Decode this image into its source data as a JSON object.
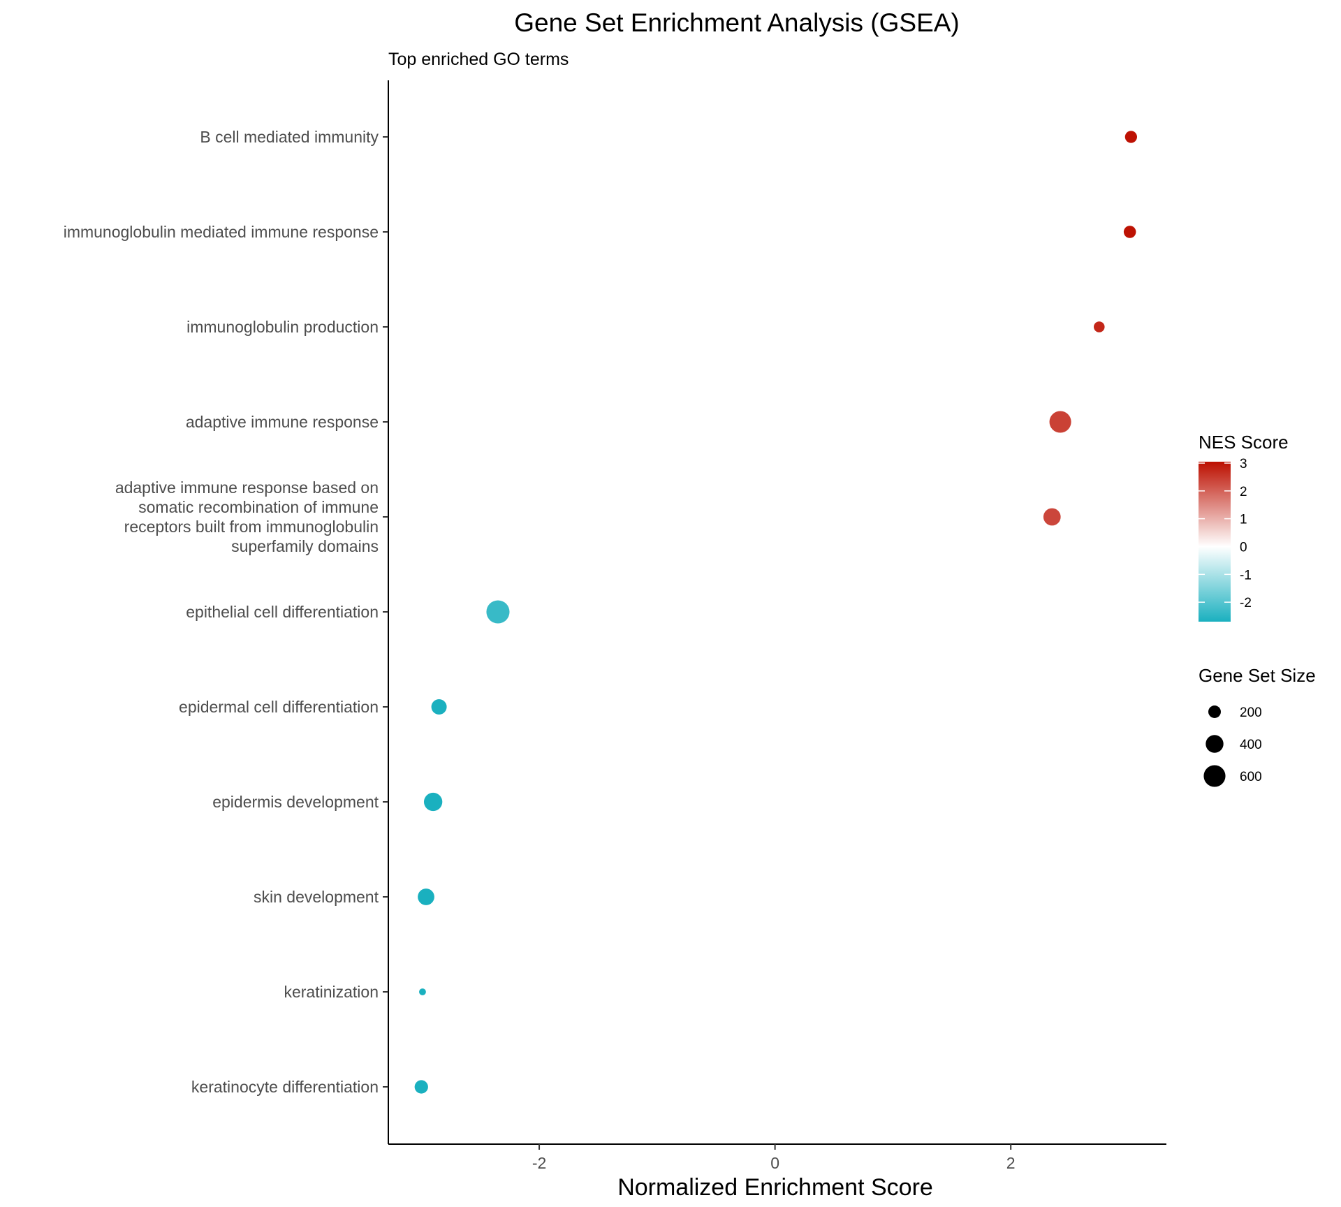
{
  "chart_data": {
    "type": "scatter",
    "title": "Gene Set Enrichment Analysis (GSEA)",
    "subtitle": "Top enriched GO terms",
    "xlabel": "Normalized Enrichment Score",
    "ylabel": "",
    "xlim": [
      -3.28,
      3.32
    ],
    "x_ticks": [
      -2,
      0,
      2
    ],
    "x_tick_labels": [
      "-2",
      "0",
      "2"
    ],
    "grid": false,
    "categories": [
      "B cell mediated immunity",
      "immunoglobulin mediated immune response",
      "immunoglobulin production",
      "adaptive immune response",
      "adaptive immune response based on\nsomatic recombination of immune\nreceptors built from immunoglobulin\nsuperfamily domains",
      "epithelial cell differentiation",
      "epidermal cell differentiation",
      "epidermis development",
      "skin development",
      "keratinization",
      "keratinocyte differentiation"
    ],
    "points": [
      {
        "term": "B cell mediated immunity",
        "nes": 3.02,
        "size": 185
      },
      {
        "term": "immunoglobulin mediated immune response",
        "nes": 3.01,
        "size": 190
      },
      {
        "term": "immunoglobulin production",
        "nes": 2.75,
        "size": 150
      },
      {
        "term": "adaptive immune response",
        "nes": 2.42,
        "size": 600
      },
      {
        "term": "adaptive immune response based on somatic recombination of immune receptors built from immunoglobulin superfamily domains",
        "nes": 2.35,
        "size": 380
      },
      {
        "term": "epithelial cell differentiation",
        "nes": -2.35,
        "size": 680
      },
      {
        "term": "epidermal cell differentiation",
        "nes": -2.85,
        "size": 300
      },
      {
        "term": "epidermis development",
        "nes": -2.9,
        "size": 430
      },
      {
        "term": "skin development",
        "nes": -2.96,
        "size": 350
      },
      {
        "term": "keratinization",
        "nes": -2.99,
        "size": 60
      },
      {
        "term": "keratinocyte differentiation",
        "nes": -3.0,
        "size": 230
      }
    ],
    "color_legend": {
      "title": "NES Score",
      "ticks": [
        3,
        2,
        1,
        0,
        -1,
        -2
      ],
      "tick_labels": [
        "3",
        "2",
        "1",
        "0",
        "-1",
        "-2"
      ],
      "range": [
        -2.7,
        3.05
      ],
      "low_color": "#1AB0BF",
      "mid_color": "#FFFFFF",
      "high_color": "#BC0F00",
      "placement": "right"
    },
    "size_legend": {
      "title": "Gene Set Size",
      "values": [
        200,
        400,
        600
      ],
      "labels": [
        "200",
        "400",
        "600"
      ],
      "placement": "right"
    }
  }
}
